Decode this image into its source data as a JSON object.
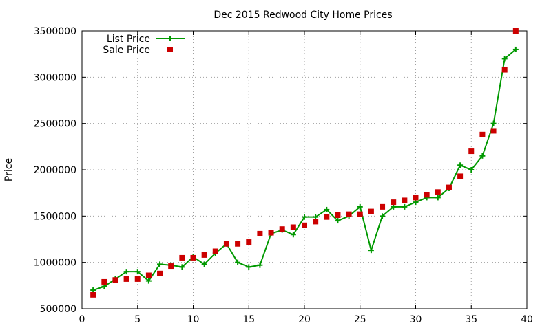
{
  "chart_data": {
    "type": "line",
    "title": "Dec 2015 Redwood City Home Prices",
    "xlabel": "",
    "ylabel": "Price",
    "xlim": [
      0,
      40
    ],
    "ylim": [
      500000,
      3500000
    ],
    "xticks": [
      0,
      5,
      10,
      15,
      20,
      25,
      30,
      35,
      40
    ],
    "yticks": [
      500000,
      1000000,
      1500000,
      2000000,
      2500000,
      3000000,
      3500000
    ],
    "grid": true,
    "legend_position": "top-left",
    "series": [
      {
        "name": "List Price",
        "style": "line+cross",
        "color": "#009900",
        "x": [
          1,
          2,
          3,
          4,
          5,
          6,
          7,
          8,
          9,
          10,
          11,
          12,
          13,
          14,
          15,
          16,
          17,
          18,
          19,
          20,
          21,
          22,
          23,
          24,
          25,
          26,
          27,
          28,
          29,
          30,
          31,
          32,
          33,
          34,
          35,
          36,
          37,
          38,
          39
        ],
        "values": [
          700000,
          740000,
          820000,
          900000,
          900000,
          800000,
          980000,
          970000,
          950000,
          1060000,
          980000,
          1100000,
          1200000,
          1000000,
          950000,
          970000,
          1310000,
          1350000,
          1300000,
          1490000,
          1490000,
          1570000,
          1450000,
          1500000,
          1600000,
          1130000,
          1500000,
          1600000,
          1600000,
          1650000,
          1700000,
          1700000,
          1800000,
          2050000,
          2000000,
          2150000,
          2500000,
          3200000,
          3300000
        ]
      },
      {
        "name": "Sale Price",
        "style": "square",
        "color": "#cc0000",
        "x": [
          1,
          2,
          3,
          4,
          5,
          6,
          7,
          8,
          9,
          10,
          11,
          12,
          13,
          14,
          15,
          16,
          17,
          18,
          19,
          20,
          21,
          22,
          23,
          24,
          25,
          26,
          27,
          28,
          29,
          30,
          31,
          32,
          33,
          34,
          35,
          36,
          37,
          38,
          39
        ],
        "values": [
          650000,
          790000,
          810000,
          820000,
          820000,
          860000,
          880000,
          960000,
          1050000,
          1050000,
          1080000,
          1120000,
          1200000,
          1200000,
          1220000,
          1310000,
          1320000,
          1360000,
          1380000,
          1400000,
          1440000,
          1490000,
          1510000,
          1520000,
          1520000,
          1550000,
          1600000,
          1650000,
          1670000,
          1700000,
          1730000,
          1760000,
          1810000,
          1930000,
          2200000,
          2380000,
          2420000,
          3080000,
          3500000
        ]
      }
    ]
  }
}
